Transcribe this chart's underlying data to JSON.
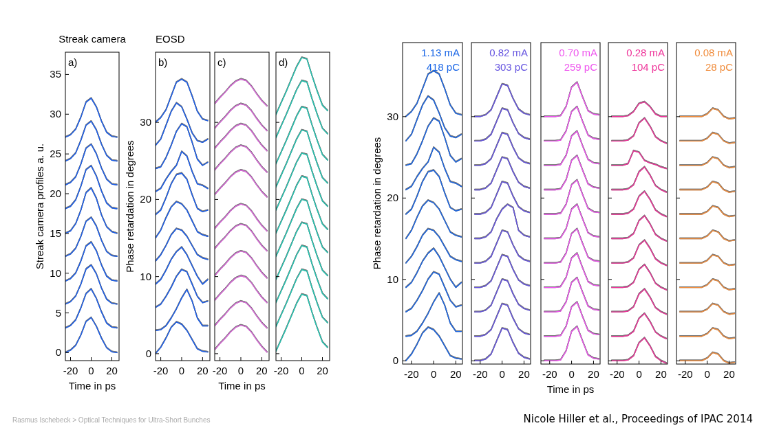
{
  "chart_data": [
    {
      "type": "line",
      "title": "Streak camera",
      "ylabel": "Streak camera profiles a. u.",
      "xlabel": "Time in ps",
      "annotations": [
        "a)"
      ],
      "x": [
        -25,
        -20,
        -15,
        -10,
        -5,
        0,
        5,
        10,
        15,
        20,
        25
      ],
      "xlim": [
        -25,
        27
      ],
      "xticks": [
        -20,
        0,
        20
      ],
      "ylim": [
        -1,
        37.8
      ],
      "yticks": [
        0,
        5,
        10,
        15,
        20,
        25,
        30,
        35
      ],
      "series": [
        {
          "color": "#1a5ff0",
          "values": [
            0.0,
            0.3,
            0.9,
            2.2,
            3.9,
            4.4,
            3.3,
            1.8,
            0.6,
            0.1,
            0.0
          ]
        },
        {
          "color": "#1a5ff0",
          "values": [
            3.1,
            3.4,
            4.1,
            5.6,
            7.4,
            8.0,
            6.8,
            5.1,
            3.7,
            3.2,
            3.1
          ]
        },
        {
          "color": "#1a5ff0",
          "values": [
            6.1,
            6.4,
            7.1,
            8.6,
            10.5,
            11.0,
            9.9,
            8.1,
            6.7,
            6.2,
            6.1
          ]
        },
        {
          "color": "#1a5ff0",
          "values": [
            9.0,
            9.3,
            10.0,
            11.5,
            13.4,
            13.9,
            12.8,
            11.0,
            9.6,
            9.1,
            9.0
          ]
        },
        {
          "color": "#1a5ff0",
          "values": [
            12.1,
            12.4,
            13.1,
            14.6,
            16.5,
            17.0,
            15.9,
            14.1,
            12.7,
            12.2,
            12.1
          ]
        },
        {
          "color": "#1a5ff0",
          "values": [
            15.0,
            15.3,
            16.2,
            17.9,
            20.1,
            20.7,
            19.4,
            17.3,
            15.8,
            15.2,
            15.0
          ]
        },
        {
          "color": "#1a5ff0",
          "values": [
            18.1,
            18.4,
            19.2,
            20.9,
            23.0,
            23.5,
            22.2,
            20.3,
            18.8,
            18.2,
            18.1
          ]
        },
        {
          "color": "#1a5ff0",
          "values": [
            21.1,
            21.4,
            22.1,
            23.7,
            25.7,
            26.2,
            25.0,
            23.2,
            21.8,
            21.2,
            21.1
          ]
        },
        {
          "color": "#1a5ff0",
          "values": [
            24.1,
            24.4,
            25.1,
            26.7,
            28.6,
            29.1,
            28.0,
            26.2,
            24.8,
            24.2,
            24.1
          ]
        },
        {
          "color": "#1a5ff0",
          "values": [
            27.1,
            27.4,
            28.1,
            29.6,
            31.5,
            32.0,
            30.9,
            29.1,
            27.7,
            27.2,
            27.1
          ]
        }
      ]
    },
    {
      "type": "line",
      "title": "EOSD",
      "ylabel": "Phase retardation in degrees",
      "annotations": [
        "b)"
      ],
      "x": [
        -25,
        -20,
        -15,
        -10,
        -5,
        0,
        5,
        10,
        15,
        20,
        25
      ],
      "xlim": [
        -25,
        27
      ],
      "xticks": [
        -20,
        0,
        20
      ],
      "ylim": [
        -0.9,
        39.1
      ],
      "yticks": [
        0,
        10,
        20,
        30
      ],
      "series": [
        {
          "color": "#1a5ff0",
          "values": [
            0.0,
            0.8,
            2.0,
            3.4,
            4.1,
            3.8,
            3.0,
            1.8,
            0.6,
            0.3,
            0.2
          ]
        },
        {
          "color": "#1a5ff0",
          "values": [
            3.0,
            3.1,
            3.6,
            4.6,
            5.8,
            7.2,
            8.3,
            6.8,
            4.6,
            3.6,
            3.6
          ]
        },
        {
          "color": "#1a5ff0",
          "values": [
            6.0,
            6.4,
            7.4,
            8.6,
            10.0,
            10.9,
            10.6,
            9.0,
            7.4,
            6.6,
            6.8
          ]
        },
        {
          "color": "#1a5ff0",
          "values": [
            9.0,
            9.6,
            10.8,
            12.2,
            13.2,
            13.8,
            12.8,
            11.4,
            10.0,
            9.0,
            9.6
          ]
        },
        {
          "color": "#1a5ff0",
          "values": [
            12.0,
            12.8,
            14.0,
            15.4,
            16.2,
            16.0,
            15.2,
            14.0,
            12.8,
            12.4,
            12.2
          ]
        },
        {
          "color": "#1a5ff0",
          "values": [
            15.0,
            16.0,
            17.6,
            19.0,
            19.7,
            19.4,
            18.6,
            17.2,
            15.8,
            15.4,
            15.2
          ]
        },
        {
          "color": "#1a5ff0",
          "values": [
            18.0,
            18.6,
            20.2,
            22.0,
            23.2,
            23.4,
            22.6,
            20.6,
            18.8,
            18.4,
            18.6
          ]
        },
        {
          "color": "#1a5ff0",
          "values": [
            21.0,
            21.4,
            22.6,
            23.6,
            24.4,
            26.2,
            25.6,
            23.6,
            22.0,
            21.8,
            21.4
          ]
        },
        {
          "color": "#1a5ff0",
          "values": [
            24.0,
            24.2,
            25.4,
            27.0,
            28.8,
            29.8,
            29.4,
            27.4,
            25.2,
            24.4,
            24.8
          ]
        },
        {
          "color": "#1a5ff0",
          "values": [
            27.0,
            27.8,
            29.6,
            31.4,
            32.5,
            32.0,
            30.4,
            28.6,
            27.6,
            27.4,
            27.8
          ]
        },
        {
          "color": "#1a5ff0",
          "values": [
            30.0,
            30.6,
            31.6,
            33.4,
            35.2,
            35.6,
            35.2,
            33.4,
            31.4,
            30.4,
            30.2
          ]
        }
      ]
    },
    {
      "type": "line",
      "xlabel": "Time in ps",
      "annotations": [
        "c)"
      ],
      "tick_labels": "x",
      "x": [
        -25,
        -20,
        -15,
        -10,
        -5,
        0,
        5,
        10,
        15,
        20,
        25
      ],
      "xlim": [
        -25,
        27
      ],
      "xticks": [
        -20,
        0,
        20
      ],
      "ylim": [
        -0.9,
        39.1
      ],
      "yticks": [
        0,
        10,
        20,
        30
      ],
      "series": [
        {
          "color": "#dd66dd",
          "values": [
            0.5,
            1.3,
            2.0,
            2.8,
            3.4,
            3.7,
            3.5,
            2.8,
            1.8,
            0.9,
            0.2
          ]
        },
        {
          "color": "#dd66dd",
          "values": [
            3.6,
            4.4,
            5.1,
            5.9,
            6.5,
            6.8,
            6.6,
            5.9,
            4.9,
            4.0,
            3.3
          ]
        },
        {
          "color": "#dd66dd",
          "values": [
            6.9,
            7.7,
            8.4,
            9.2,
            9.8,
            10.1,
            9.9,
            9.2,
            8.2,
            7.3,
            6.6
          ]
        },
        {
          "color": "#dd66dd",
          "values": [
            10.1,
            10.9,
            11.6,
            12.4,
            13.0,
            13.3,
            13.1,
            12.4,
            11.4,
            10.5,
            9.8
          ]
        },
        {
          "color": "#dd66dd",
          "values": [
            13.6,
            14.4,
            15.1,
            15.9,
            16.5,
            16.8,
            16.6,
            15.9,
            14.9,
            14.0,
            13.3
          ]
        },
        {
          "color": "#dd66dd",
          "values": [
            16.2,
            17.0,
            17.7,
            18.5,
            19.1,
            19.4,
            19.2,
            18.5,
            17.5,
            16.6,
            15.9
          ]
        },
        {
          "color": "#dd66dd",
          "values": [
            20.6,
            21.4,
            22.1,
            22.9,
            23.5,
            23.8,
            23.6,
            22.9,
            21.9,
            21.0,
            20.3
          ]
        },
        {
          "color": "#dd66dd",
          "values": [
            23.8,
            24.6,
            25.3,
            26.1,
            26.7,
            27.0,
            26.8,
            26.1,
            25.1,
            24.2,
            23.5
          ]
        },
        {
          "color": "#dd66dd",
          "values": [
            26.6,
            27.4,
            28.1,
            28.9,
            29.5,
            29.8,
            29.6,
            28.9,
            27.9,
            27.0,
            26.3
          ]
        },
        {
          "color": "#dd66dd",
          "values": [
            29.2,
            30.0,
            30.7,
            31.5,
            32.1,
            32.4,
            32.2,
            31.5,
            30.5,
            29.6,
            28.9
          ]
        },
        {
          "color": "#dd66dd",
          "values": [
            32.4,
            33.2,
            33.9,
            34.7,
            35.3,
            35.6,
            35.4,
            34.7,
            33.7,
            32.8,
            32.1
          ]
        }
      ]
    },
    {
      "type": "line",
      "annotations": [
        "d)"
      ],
      "tick_labels": "x",
      "x": [
        -25,
        -20,
        -15,
        -10,
        -5,
        0,
        5,
        10,
        15,
        20,
        25
      ],
      "xlim": [
        -25,
        27
      ],
      "xticks": [
        -20,
        0,
        20
      ],
      "ylim": [
        -0.9,
        39.1
      ],
      "yticks": [
        0,
        10,
        20,
        30
      ],
      "series": [
        {
          "color": "#22c8b4",
          "values": [
            0.3,
            1.8,
            3.3,
            4.9,
            6.5,
            7.7,
            7.5,
            5.3,
            3.3,
            1.5,
            0.8
          ]
        },
        {
          "color": "#22c8b4",
          "values": [
            3.5,
            5.0,
            6.5,
            8.1,
            9.7,
            10.9,
            10.7,
            8.5,
            6.5,
            4.7,
            4.0
          ]
        },
        {
          "color": "#22c8b4",
          "values": [
            6.6,
            8.1,
            9.6,
            11.2,
            12.8,
            14.0,
            13.8,
            11.6,
            9.6,
            7.8,
            7.1
          ]
        },
        {
          "color": "#22c8b4",
          "values": [
            9.6,
            11.1,
            12.6,
            14.2,
            15.8,
            17.0,
            16.8,
            14.6,
            12.6,
            10.8,
            10.1
          ]
        },
        {
          "color": "#22c8b4",
          "values": [
            12.6,
            14.1,
            15.6,
            17.2,
            18.8,
            20.0,
            19.8,
            17.6,
            15.6,
            13.8,
            13.1
          ]
        },
        {
          "color": "#22c8b4",
          "values": [
            15.6,
            17.1,
            18.6,
            20.2,
            21.8,
            23.0,
            22.8,
            20.6,
            18.6,
            16.8,
            16.1
          ]
        },
        {
          "color": "#22c8b4",
          "values": [
            18.6,
            20.1,
            21.6,
            23.2,
            24.8,
            26.0,
            25.8,
            23.6,
            21.6,
            19.8,
            19.1
          ]
        },
        {
          "color": "#22c8b4",
          "values": [
            21.6,
            23.1,
            24.6,
            26.2,
            27.8,
            29.0,
            28.8,
            26.6,
            24.6,
            22.8,
            22.1
          ]
        },
        {
          "color": "#22c8b4",
          "values": [
            24.6,
            26.1,
            27.6,
            29.2,
            30.8,
            32.0,
            31.8,
            29.6,
            27.6,
            25.8,
            25.1
          ]
        },
        {
          "color": "#22c8b4",
          "values": [
            28.0,
            29.5,
            31.0,
            32.6,
            34.2,
            35.4,
            35.2,
            33.0,
            31.0,
            29.2,
            28.5
          ]
        },
        {
          "color": "#22c8b4",
          "values": [
            31.0,
            32.5,
            34.0,
            35.6,
            37.2,
            38.4,
            38.2,
            36.0,
            34.0,
            32.2,
            31.5
          ]
        }
      ]
    },
    {
      "type": "line",
      "ylabel": "Phase retardation in degrees",
      "annotations": [
        "1.13 mA",
        "418 pC"
      ],
      "x": [
        -25,
        -20,
        -15,
        -10,
        -5,
        0,
        5,
        10,
        15,
        20,
        25
      ],
      "xlim": [
        -28,
        26
      ],
      "xticks": [
        -20,
        0,
        20
      ],
      "ylim": [
        -0.4,
        39.1
      ],
      "yticks": [
        0,
        10,
        20,
        30
      ],
      "series": [
        {
          "color": "#1a66e6",
          "values": [
            0.0,
            0.8,
            2.0,
            3.4,
            4.1,
            3.8,
            3.0,
            1.8,
            0.6,
            0.3,
            0.2
          ]
        },
        {
          "color": "#1a66e6",
          "values": [
            3.0,
            3.1,
            3.6,
            4.6,
            5.8,
            7.2,
            8.3,
            6.8,
            4.6,
            3.6,
            3.6
          ]
        },
        {
          "color": "#1a66e6",
          "values": [
            6.0,
            6.4,
            7.4,
            8.6,
            10.0,
            10.9,
            10.6,
            9.0,
            7.4,
            6.6,
            6.8
          ]
        },
        {
          "color": "#1a66e6",
          "values": [
            9.0,
            9.6,
            10.8,
            12.2,
            13.2,
            13.8,
            12.8,
            11.4,
            10.0,
            9.0,
            9.6
          ]
        },
        {
          "color": "#1a66e6",
          "values": [
            12.0,
            12.8,
            14.0,
            15.4,
            16.2,
            16.0,
            15.2,
            14.0,
            12.8,
            12.4,
            12.2
          ]
        },
        {
          "color": "#1a66e6",
          "values": [
            15.0,
            16.0,
            17.6,
            19.0,
            19.7,
            19.4,
            18.6,
            17.2,
            15.8,
            15.4,
            15.2
          ]
        },
        {
          "color": "#1a66e6",
          "values": [
            18.0,
            18.6,
            20.2,
            22.0,
            23.2,
            23.4,
            22.6,
            20.6,
            18.8,
            18.4,
            18.6
          ]
        },
        {
          "color": "#1a66e6",
          "values": [
            21.0,
            21.4,
            22.6,
            23.6,
            24.4,
            26.2,
            25.6,
            23.6,
            22.0,
            21.8,
            21.4
          ]
        },
        {
          "color": "#1a66e6",
          "values": [
            24.0,
            24.2,
            25.4,
            27.0,
            28.8,
            29.8,
            29.4,
            27.4,
            25.2,
            24.4,
            24.8
          ]
        },
        {
          "color": "#1a66e6",
          "values": [
            27.0,
            27.8,
            29.6,
            31.4,
            32.5,
            32.0,
            30.4,
            28.6,
            27.6,
            27.4,
            27.8
          ]
        },
        {
          "color": "#1a66e6",
          "values": [
            30.0,
            30.6,
            31.6,
            33.4,
            35.2,
            35.6,
            35.2,
            33.4,
            31.4,
            30.4,
            30.2
          ]
        }
      ]
    },
    {
      "type": "line",
      "annotations": [
        "0.82 mA",
        "303 pC"
      ],
      "tick_labels": "x",
      "x": [
        -25,
        -20,
        -15,
        -10,
        -5,
        0,
        5,
        10,
        15,
        20,
        25
      ],
      "xlim": [
        -28,
        26
      ],
      "xticks": [
        -20,
        0,
        20
      ],
      "ylim": [
        -0.4,
        39.1
      ],
      "yticks": [
        0,
        10,
        20,
        30
      ],
      "series": [
        {
          "color": "#6655e0",
          "values": [
            0,
            0,
            0.2,
            0.8,
            2.4,
            4.0,
            3.8,
            2.2,
            0.9,
            0.4,
            0.2
          ]
        },
        {
          "color": "#6655e0",
          "values": [
            3,
            3,
            3.2,
            3.8,
            5.4,
            7.0,
            6.8,
            5.2,
            3.9,
            3.4,
            3.2
          ]
        },
        {
          "color": "#6655e0",
          "values": [
            6,
            6,
            6.2,
            6.8,
            8.4,
            10.0,
            9.8,
            8.2,
            6.9,
            6.4,
            6.2
          ]
        },
        {
          "color": "#6655e0",
          "values": [
            9,
            9,
            9.2,
            9.8,
            11.4,
            13.0,
            12.8,
            11.2,
            9.9,
            9.4,
            9.2
          ]
        },
        {
          "color": "#6655e0",
          "values": [
            12,
            12,
            12.2,
            12.8,
            14.4,
            16.0,
            15.8,
            14.2,
            12.9,
            12.4,
            12.2
          ]
        },
        {
          "color": "#6655e0",
          "values": [
            15,
            15,
            15.2,
            15.8,
            17.4,
            18.6,
            19.2,
            18.8,
            16.0,
            15.4,
            15.2
          ]
        },
        {
          "color": "#6655e0",
          "values": [
            18,
            18,
            18.2,
            18.8,
            20.4,
            22.0,
            21.8,
            20.2,
            18.9,
            18.4,
            18.2
          ]
        },
        {
          "color": "#6655e0",
          "values": [
            21,
            21,
            21.2,
            21.8,
            23.4,
            25.0,
            24.8,
            23.2,
            21.9,
            21.4,
            21.2
          ]
        },
        {
          "color": "#6655e0",
          "values": [
            24,
            24,
            24.2,
            24.8,
            26.4,
            28.0,
            27.8,
            26.2,
            24.9,
            24.4,
            24.2
          ]
        },
        {
          "color": "#6655e0",
          "values": [
            27,
            27,
            27.2,
            27.8,
            29.4,
            31.0,
            30.8,
            29.2,
            27.9,
            27.4,
            27.2
          ]
        },
        {
          "color": "#6655e0",
          "values": [
            30,
            30,
            30.2,
            30.8,
            32.4,
            34.0,
            33.8,
            32.2,
            30.9,
            30.4,
            30.2
          ]
        }
      ]
    },
    {
      "type": "line",
      "xlabel": "Time in ps",
      "annotations": [
        "0.70 mA",
        "259 pC"
      ],
      "tick_labels": "x",
      "x": [
        -25,
        -20,
        -15,
        -10,
        -5,
        0,
        5,
        10,
        15,
        20,
        25
      ],
      "xlim": [
        -28,
        26
      ],
      "xticks": [
        -20,
        0,
        20
      ],
      "ylim": [
        -0.4,
        39.1
      ],
      "yticks": [
        0,
        10,
        20,
        30
      ],
      "series": [
        {
          "color": "#ee55ee",
          "values": [
            0,
            0,
            0,
            0.1,
            1.2,
            3.6,
            4.2,
            2.4,
            0.7,
            0.3,
            0.2
          ]
        },
        {
          "color": "#ee55ee",
          "values": [
            3,
            3,
            3,
            3.1,
            4.2,
            6.6,
            7.2,
            5.4,
            3.7,
            3.3,
            3.2
          ]
        },
        {
          "color": "#ee55ee",
          "values": [
            6,
            6,
            6,
            6.1,
            7.2,
            9.6,
            10.2,
            8.4,
            6.7,
            6.3,
            6.2
          ]
        },
        {
          "color": "#ee55ee",
          "values": [
            9,
            9,
            9,
            9.1,
            10.2,
            12.6,
            13.2,
            11.4,
            9.7,
            9.3,
            9.2
          ]
        },
        {
          "color": "#ee55ee",
          "values": [
            12,
            12,
            12,
            12.1,
            13.2,
            15.6,
            16.2,
            14.4,
            12.7,
            12.3,
            12.2
          ]
        },
        {
          "color": "#ee55ee",
          "values": [
            15,
            15,
            15,
            15.1,
            16.2,
            18.6,
            19.2,
            17.4,
            15.7,
            15.3,
            15.2
          ]
        },
        {
          "color": "#ee55ee",
          "values": [
            18,
            18,
            18,
            18.1,
            19.2,
            21.6,
            22.2,
            20.4,
            18.7,
            18.3,
            18.2
          ]
        },
        {
          "color": "#ee55ee",
          "values": [
            21,
            21,
            21,
            21.1,
            22.2,
            24.6,
            25.2,
            23.4,
            21.7,
            21.3,
            21.2
          ]
        },
        {
          "color": "#ee55ee",
          "values": [
            24,
            24,
            24,
            24.1,
            25.2,
            27.6,
            28.2,
            26.4,
            24.7,
            24.3,
            24.2
          ]
        },
        {
          "color": "#ee55ee",
          "values": [
            27,
            27,
            27,
            27.1,
            28.2,
            30.6,
            31.2,
            29.4,
            27.7,
            27.3,
            27.2
          ]
        },
        {
          "color": "#ee55ee",
          "values": [
            30,
            30,
            30,
            30.1,
            31.2,
            33.6,
            34.2,
            32.4,
            30.7,
            30.3,
            30.2
          ]
        }
      ]
    },
    {
      "type": "line",
      "annotations": [
        "0.28 mA",
        "104 pC"
      ],
      "tick_labels": "x",
      "x": [
        -25,
        -20,
        -15,
        -10,
        -5,
        0,
        5,
        10,
        15,
        20,
        25
      ],
      "xlim": [
        -28,
        26
      ],
      "xticks": [
        -20,
        0,
        20
      ],
      "ylim": [
        -0.4,
        39.1
      ],
      "yticks": [
        0,
        10,
        20,
        30
      ],
      "series": [
        {
          "color": "#ee3399",
          "values": [
            0,
            0,
            0,
            0.1,
            0.6,
            2.2,
            2.8,
            1.8,
            0.5,
            0,
            -0.3
          ]
        },
        {
          "color": "#ee3399",
          "values": [
            3,
            3,
            3,
            3.1,
            3.6,
            5.2,
            5.8,
            4.8,
            3.5,
            3,
            2.7
          ]
        },
        {
          "color": "#ee3399",
          "values": [
            6,
            6,
            6,
            6.1,
            6.6,
            8.2,
            8.8,
            7.8,
            6.5,
            6,
            5.7
          ]
        },
        {
          "color": "#ee3399",
          "values": [
            9,
            9,
            9,
            9.1,
            9.6,
            11.2,
            11.8,
            10.8,
            9.5,
            9,
            8.7
          ]
        },
        {
          "color": "#ee3399",
          "values": [
            12,
            12,
            12,
            12.1,
            12.6,
            14.2,
            14.8,
            13.8,
            12.5,
            12,
            11.7
          ]
        },
        {
          "color": "#ee3399",
          "values": [
            15,
            15,
            15,
            15.1,
            15.6,
            17.2,
            17.8,
            16.8,
            15.5,
            15,
            14.7
          ]
        },
        {
          "color": "#ee3399",
          "values": [
            18,
            18,
            18,
            18.1,
            18.6,
            20.2,
            20.8,
            19.8,
            18.5,
            18,
            17.7
          ]
        },
        {
          "color": "#ee3399",
          "values": [
            21,
            21,
            21,
            21.1,
            21.6,
            23.2,
            23.8,
            22.8,
            21.5,
            21,
            20.7
          ]
        },
        {
          "color": "#ee3399",
          "values": [
            24,
            24,
            24,
            24.2,
            25.8,
            25.6,
            24.6,
            24.3,
            24.1,
            23.8,
            23.6
          ]
        },
        {
          "color": "#ee3399",
          "values": [
            27,
            27,
            27,
            27.1,
            27.6,
            29.2,
            29.8,
            28.8,
            27.5,
            27,
            26.7
          ]
        },
        {
          "color": "#ee3399",
          "values": [
            30,
            30,
            30,
            30.1,
            30.6,
            31.6,
            31.8,
            31.2,
            30.3,
            30,
            30
          ]
        }
      ]
    },
    {
      "type": "line",
      "annotations": [
        "0.08 mA",
        "28 pC"
      ],
      "tick_labels": "x",
      "x": [
        -25,
        -20,
        -15,
        -10,
        -5,
        0,
        5,
        10,
        15,
        20,
        25
      ],
      "xlim": [
        -28,
        26
      ],
      "xticks": [
        -20,
        0,
        20
      ],
      "ylim": [
        -0.4,
        39.1
      ],
      "yticks": [
        0,
        10,
        20,
        30
      ],
      "series": [
        {
          "color": "#f08c3c",
          "values": [
            0,
            0,
            0,
            0,
            0,
            0.3,
            1.0,
            0.8,
            0,
            -0.3,
            -0.2
          ]
        },
        {
          "color": "#f08c3c",
          "values": [
            3,
            3,
            3,
            3,
            3,
            3.3,
            4.0,
            3.8,
            3,
            2.7,
            2.8
          ]
        },
        {
          "color": "#f08c3c",
          "values": [
            6,
            6,
            6,
            6,
            6,
            6.3,
            7.0,
            6.8,
            6,
            5.7,
            5.8
          ]
        },
        {
          "color": "#f08c3c",
          "values": [
            9,
            9,
            9,
            9,
            9,
            9.3,
            10.0,
            9.8,
            9,
            8.7,
            8.8
          ]
        },
        {
          "color": "#f08c3c",
          "values": [
            12,
            12,
            12,
            12,
            12,
            12.3,
            13.0,
            12.8,
            12,
            11.7,
            11.8
          ]
        },
        {
          "color": "#f08c3c",
          "values": [
            15,
            15,
            15,
            15,
            15,
            15.3,
            16.0,
            15.8,
            15,
            14.7,
            14.8
          ]
        },
        {
          "color": "#f08c3c",
          "values": [
            18,
            18,
            18,
            18,
            18,
            18.3,
            19.0,
            18.8,
            18,
            17.7,
            17.8
          ]
        },
        {
          "color": "#f08c3c",
          "values": [
            21,
            21,
            21,
            21,
            21,
            21.3,
            22.0,
            21.8,
            21,
            20.7,
            20.8
          ]
        },
        {
          "color": "#f08c3c",
          "values": [
            24,
            24,
            24,
            24,
            24,
            24.3,
            25.0,
            24.8,
            24,
            23.7,
            23.8
          ]
        },
        {
          "color": "#f08c3c",
          "values": [
            27,
            27,
            27,
            27,
            27,
            27.3,
            28.0,
            27.8,
            27,
            26.7,
            26.8
          ]
        },
        {
          "color": "#f08c3c",
          "values": [
            30,
            30,
            30,
            30,
            30,
            30.3,
            31.0,
            30.8,
            30,
            29.7,
            29.8
          ]
        }
      ]
    },
    {
      "type": "other",
      "annotations": [
        "Rasmus Ischebeck > Optical Techniques for Ultra-Short Bunches",
        "Nicole Hiller et al., Proceedings of IPAC 2014"
      ]
    }
  ]
}
